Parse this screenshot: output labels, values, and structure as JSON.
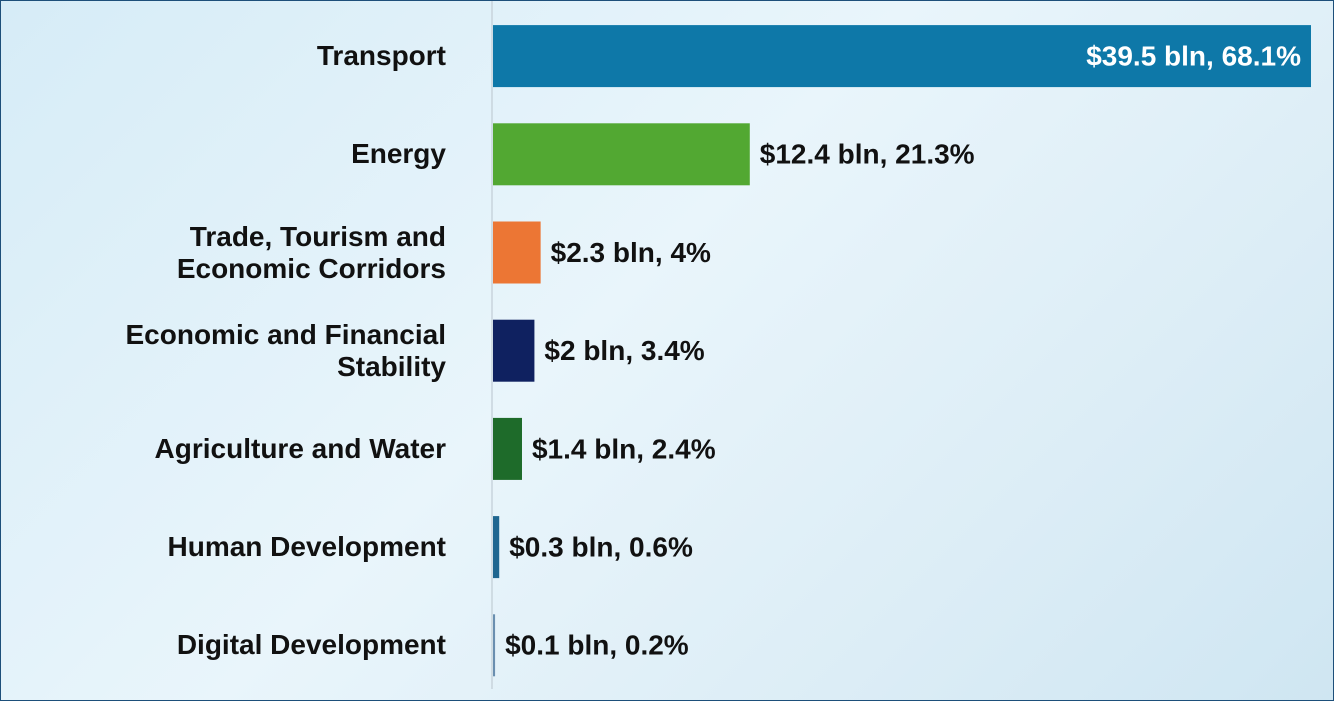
{
  "chart_data": {
    "type": "hbar",
    "categories": [
      "Transport",
      "Energy",
      "Trade, Tourism and Economic Corridors",
      "Economic and Financial Stability",
      "Agriculture and Water",
      "Human Development",
      "Digital Development"
    ],
    "values": [
      39.5,
      12.4,
      2.3,
      2,
      1.4,
      0.3,
      0.1
    ],
    "value_labels": [
      "$39.5 bln, 68.1%",
      "$12.4 bln, 21.3%",
      "$2.3 bln, 4%",
      "$2 bln, 3.4%",
      "$1.4 bln, 2.4%",
      "$0.3 bln, 0.6%",
      "$0.1 bln, 0.2%"
    ],
    "colors": [
      "#0e78a8",
      "#52a832",
      "#ec7634",
      "#0f2160",
      "#1e6b2a",
      "#1f6690",
      "#6a8fb0"
    ],
    "xlim": [
      0,
      39.5
    ]
  }
}
